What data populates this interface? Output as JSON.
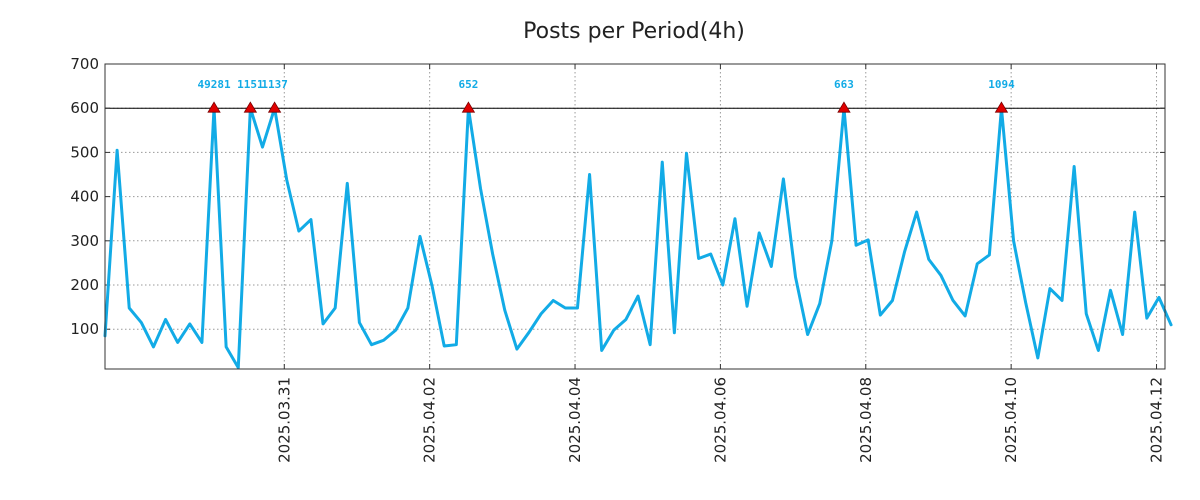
{
  "chart_data": {
    "type": "line",
    "title": "Posts per Period(4h)",
    "xlabel": "",
    "ylabel": "",
    "ylim": [
      10,
      700
    ],
    "y_ticks": [
      100,
      200,
      300,
      400,
      500,
      600,
      700
    ],
    "x_range": [
      0,
      87.5
    ],
    "x_ticks": [
      {
        "x": 14.8,
        "label": "2025.03.31"
      },
      {
        "x": 26.8,
        "label": "2025.04.02"
      },
      {
        "x": 38.8,
        "label": "2025.04.04"
      },
      {
        "x": 50.8,
        "label": "2025.04.06"
      },
      {
        "x": 62.8,
        "label": "2025.04.08"
      },
      {
        "x": 74.8,
        "label": "2025.04.10"
      },
      {
        "x": 86.8,
        "label": "2025.04.12"
      }
    ],
    "cap_line": 600,
    "series": [
      {
        "name": "posts",
        "color": "#12abe6",
        "values": [
          85,
          505,
          148,
          115,
          60,
          122,
          70,
          112,
          70,
          600,
          60,
          13,
          600,
          512,
          600,
          438,
          322,
          348,
          112,
          148,
          430,
          115,
          65,
          75,
          98,
          148,
          310,
          198,
          62,
          65,
          600,
          418,
          270,
          143,
          55,
          93,
          135,
          165,
          148,
          148,
          450,
          52,
          98,
          122,
          175,
          65,
          478,
          92,
          498,
          260,
          270,
          200,
          350,
          152,
          318,
          242,
          440,
          218,
          88,
          158,
          300,
          600,
          290,
          302,
          132,
          165,
          275,
          365,
          258,
          222,
          165,
          130,
          248,
          268,
          600,
          300,
          160,
          35,
          192,
          165,
          468,
          135,
          52,
          188,
          88,
          365,
          125,
          172,
          110
        ]
      }
    ],
    "peaks": [
      {
        "index": 9,
        "label": "49281"
      },
      {
        "index": 12,
        "label": "1151"
      },
      {
        "index": 14,
        "label": "1137"
      },
      {
        "index": 30,
        "label": "652"
      },
      {
        "index": 61,
        "label": "663"
      },
      {
        "index": 74,
        "label": "1094"
      }
    ],
    "peak_marker_color": "#e00000",
    "peak_label_color": "#12abe6",
    "grid": true
  }
}
